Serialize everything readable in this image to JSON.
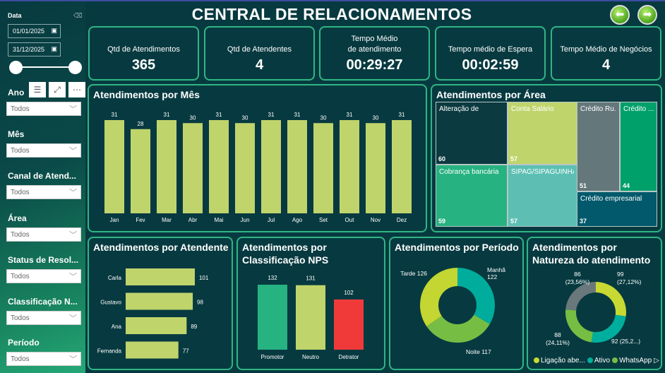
{
  "title": "CENTRAL DE RELACIONAMENTOS",
  "nav": {
    "back_icon": "arrow-left-icon",
    "forward_icon": "arrow-right-icon"
  },
  "sidebar": {
    "date_label": "Data",
    "date_start": "01/01/2025",
    "date_end": "31/12/2025",
    "date_range_fill": 1.0,
    "filters": [
      {
        "label": "Ano",
        "value": "Todos"
      },
      {
        "label": "Mês",
        "value": "Todos"
      },
      {
        "label": "Canal de Atend...",
        "value": "Todos"
      },
      {
        "label": "Área",
        "value": "Todos"
      },
      {
        "label": "Status de Resol...",
        "value": "Todos"
      },
      {
        "label": "Classificação N...",
        "value": "Todos"
      },
      {
        "label": "Período",
        "value": "Todos"
      }
    ],
    "visual_tools": [
      "filter-icon",
      "focus-mode-icon",
      "more-options-icon"
    ]
  },
  "kpis": [
    {
      "label": "Qtd de Atendimentos",
      "value": "365"
    },
    {
      "label": "Qtd de Atendentes",
      "value": "4"
    },
    {
      "label": "Tempo Médio de atendimento",
      "value": "00:29:27"
    },
    {
      "label": "Tempo médio de Espera",
      "value": "00:02:59"
    },
    {
      "label": "Tempo Médio de Negócios",
      "value": "4"
    }
  ],
  "colors": {
    "background": "#073a40",
    "border": "#2fb684",
    "bar": "#c0d46c",
    "red": "#f03a3a"
  },
  "chart_data": [
    {
      "type": "bar",
      "title": "Atendimentos por Mês",
      "categories": [
        "Jan",
        "Fev",
        "Mar",
        "Abr",
        "Mai",
        "Jun",
        "Jul",
        "Ago",
        "Set",
        "Out",
        "Nov",
        "Dez"
      ],
      "values": [
        31,
        28,
        31,
        30,
        31,
        30,
        31,
        31,
        30,
        31,
        30,
        31
      ]
    },
    {
      "type": "treemap",
      "title": "Atendimentos por Área",
      "items": [
        {
          "label": "Alteração de",
          "value": 60,
          "color": "#0b3a40"
        },
        {
          "label": "Conta Salário",
          "value": 57,
          "color": "#c0d46c"
        },
        {
          "label": "Cobrança bancária",
          "value": 59,
          "color": "#27b281"
        },
        {
          "label": "SIPAG/SIPAGUINHA",
          "value": 57,
          "color": "#5dbfb3"
        },
        {
          "label": "Crédito Ru...",
          "value": 51,
          "color": "#64777a"
        },
        {
          "label": "Crédito ...",
          "value": 44,
          "color": "#00a06a"
        },
        {
          "label": "Crédito empresarial",
          "value": 37,
          "color": "#01596b"
        }
      ]
    },
    {
      "type": "bar",
      "orientation": "horizontal",
      "title": "Atendimentos por Atendente",
      "categories": [
        "Carla",
        "Gustavo",
        "Ana",
        "Fernanda"
      ],
      "values": [
        101,
        98,
        89,
        77
      ]
    },
    {
      "type": "bar",
      "title": "Atendimentos por Classificação NPS",
      "categories": [
        "Promotor",
        "Neutro",
        "Detrator"
      ],
      "values": [
        132,
        131,
        102
      ],
      "colors": [
        "#27b281",
        "#c0d46c",
        "#f03a3a"
      ]
    },
    {
      "type": "pie",
      "donut": true,
      "title": "Atendimentos por Período",
      "labels": [
        "Manhã",
        "Noite",
        "Tarde"
      ],
      "values": [
        122,
        117,
        126
      ],
      "data_labels": [
        "Manhã 122",
        "Noite 117",
        "Tarde 126"
      ],
      "colors": [
        "#00ad9c",
        "#76be43",
        "#c3d631"
      ]
    },
    {
      "type": "pie",
      "donut": true,
      "title": "Atendimentos por Natureza do atendimento",
      "values": [
        99,
        92,
        88,
        86
      ],
      "data_labels": [
        "99 (27,12%)",
        "92 (25,2...)",
        "88 (24,11%)",
        "86 (23,56%)"
      ],
      "colors": [
        "#c7d932",
        "#00ae9d",
        "#76be43",
        "#6a787b"
      ],
      "legend": [
        "Ligação abe...",
        "Ativo",
        "WhatsApp"
      ]
    }
  ]
}
